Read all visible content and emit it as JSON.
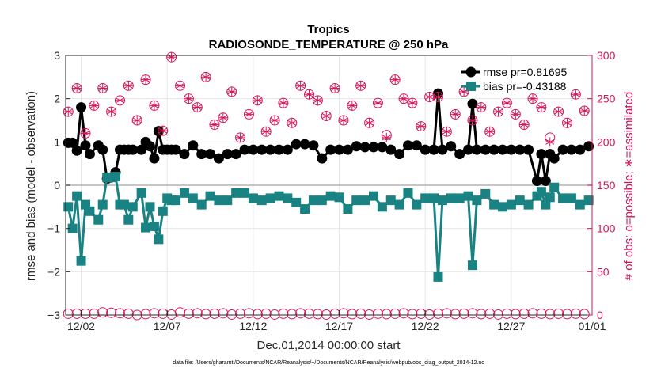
{
  "chart_data": {
    "type": "line",
    "title": "Tropics",
    "subtitle": "RADIOSONDE_TEMPERATURE @ 250 hPa",
    "xlabel": "Dec.01,2014 00:00:00 start",
    "ylabel": "rmse and bias (model - observation)",
    "y2label": "# of obs: o=possible; ∗=assimilated",
    "footnote": "data file: /Users/gharamti/Documents/NCAR/Reanalysis/~/Documents/NCAR/Reanalysis/webpub/obs_diag_output_2014-12.nc",
    "xlim": [
      0.6,
      31.2
    ],
    "ylim": [
      -3,
      3
    ],
    "y2lim": [
      0,
      300
    ],
    "x_ticks": [
      1.5,
      6.5,
      11.5,
      16.5,
      21.5,
      26.5,
      31.5
    ],
    "x_tick_labels": [
      "12/02",
      "12/07",
      "12/12",
      "12/17",
      "12/22",
      "12/27",
      "01/01"
    ],
    "y_ticks": [
      -3,
      -2,
      -1,
      0,
      1,
      2,
      3
    ],
    "y_tick_labels": [
      "−3",
      "−2",
      "−1",
      "0",
      "1",
      "2",
      "3"
    ],
    "y2_ticks": [
      0,
      50,
      100,
      150,
      200,
      250,
      300
    ],
    "y2_tick_labels": [
      "0",
      "50",
      "100",
      "150",
      "200",
      "250",
      "300"
    ],
    "grid": true,
    "legend_position": "top-right",
    "series": [
      {
        "name": "rmse",
        "legend_label": "rmse pr=0.81695",
        "color": "#000000",
        "marker": "circle",
        "axis": "left",
        "x": [
          0.75,
          1.0,
          1.25,
          1.5,
          1.75,
          2.0,
          2.5,
          2.75,
          3.0,
          3.25,
          3.5,
          3.75,
          4.0,
          4.25,
          4.5,
          5.0,
          5.25,
          5.5,
          5.75,
          6.0,
          6.25,
          6.5,
          6.75,
          7.0,
          7.5,
          8.0,
          8.5,
          9.0,
          9.5,
          10.0,
          10.5,
          11.0,
          11.5,
          12.0,
          12.5,
          13.0,
          13.5,
          14.0,
          14.5,
          15.0,
          15.5,
          16.0,
          16.5,
          17.0,
          17.5,
          18.0,
          18.5,
          19.0,
          19.5,
          20.0,
          20.5,
          21.0,
          21.5,
          22.0,
          22.25,
          22.5,
          23.0,
          23.5,
          24.0,
          24.25,
          24.5,
          25.0,
          25.5,
          26.0,
          26.5,
          27.0,
          27.5,
          28.0,
          28.25,
          28.5,
          28.75,
          29.0,
          29.5,
          30.0,
          30.5,
          31.0
        ],
        "y": [
          0.98,
          0.98,
          0.8,
          1.8,
          0.92,
          0.72,
          0.92,
          0.82,
          0.15,
          0.18,
          0.3,
          0.82,
          0.82,
          0.82,
          0.82,
          0.82,
          1.0,
          0.9,
          0.62,
          1.25,
          0.82,
          0.82,
          0.82,
          0.82,
          0.72,
          0.92,
          0.72,
          0.72,
          0.62,
          0.72,
          0.72,
          0.82,
          0.82,
          0.82,
          0.82,
          0.82,
          0.82,
          0.95,
          0.95,
          0.92,
          0.62,
          0.82,
          0.82,
          0.82,
          0.9,
          0.88,
          0.88,
          0.88,
          0.82,
          0.72,
          0.92,
          0.92,
          0.82,
          0.82,
          2.12,
          0.82,
          0.9,
          0.72,
          0.82,
          1.88,
          0.82,
          0.82,
          0.82,
          0.82,
          0.82,
          0.82,
          0.82,
          0.1,
          0.72,
          0.1,
          0.72,
          0.62,
          0.82,
          0.82,
          0.82,
          0.9
        ]
      },
      {
        "name": "bias",
        "legend_label": "bias pr=-0.43188",
        "color": "#198283",
        "marker": "square",
        "axis": "left",
        "x": [
          0.75,
          1.0,
          1.25,
          1.5,
          1.75,
          2.0,
          2.5,
          2.75,
          3.0,
          3.25,
          3.5,
          3.75,
          4.0,
          4.25,
          4.5,
          5.0,
          5.25,
          5.5,
          5.75,
          6.0,
          6.25,
          6.5,
          6.75,
          7.0,
          7.5,
          8.0,
          8.5,
          9.0,
          9.5,
          10.0,
          10.5,
          11.0,
          11.5,
          12.0,
          12.5,
          13.0,
          13.5,
          14.0,
          14.5,
          15.0,
          15.5,
          16.0,
          16.5,
          17.0,
          17.5,
          18.0,
          18.5,
          19.0,
          19.5,
          20.0,
          20.5,
          21.0,
          21.5,
          22.0,
          22.25,
          22.5,
          23.0,
          23.5,
          24.0,
          24.25,
          24.5,
          25.0,
          25.5,
          26.0,
          26.5,
          27.0,
          27.5,
          28.0,
          28.25,
          28.5,
          28.75,
          29.0,
          29.5,
          30.0,
          30.5,
          31.0
        ],
        "y": [
          -0.5,
          -1.0,
          -0.25,
          -1.75,
          -0.45,
          -0.6,
          -0.8,
          -0.45,
          0.18,
          0.18,
          0.2,
          -0.45,
          -0.45,
          -0.8,
          -0.5,
          -0.18,
          -0.98,
          -0.5,
          -0.95,
          -1.25,
          -0.6,
          -0.3,
          -0.35,
          -0.35,
          -0.18,
          -0.3,
          -0.45,
          -0.25,
          -0.35,
          -0.35,
          -0.18,
          -0.18,
          -0.3,
          -0.35,
          -0.3,
          -0.25,
          -0.3,
          -0.4,
          -0.55,
          -0.35,
          -0.35,
          -0.25,
          -0.28,
          -0.55,
          -0.35,
          -0.35,
          -0.25,
          -0.5,
          -0.35,
          -0.45,
          -0.18,
          -0.45,
          -0.3,
          -0.3,
          -2.12,
          -0.35,
          -0.3,
          -0.3,
          -0.25,
          -1.85,
          -0.35,
          -0.2,
          -0.45,
          -0.5,
          -0.45,
          -0.35,
          -0.45,
          -0.25,
          -0.15,
          -0.45,
          -0.28,
          -0.05,
          -0.3,
          -0.3,
          -0.45,
          -0.35
        ]
      },
      {
        "name": "obs possible",
        "color": "#d4145a",
        "marker": "open-circle",
        "axis": "right",
        "x": [
          0.75,
          1.25,
          1.75,
          2.25,
          2.75,
          3.25,
          3.75,
          4.25,
          4.75,
          5.25,
          5.75,
          6.25,
          6.75,
          7.25,
          7.75,
          8.25,
          8.75,
          9.25,
          9.75,
          10.25,
          10.75,
          11.25,
          11.75,
          12.25,
          12.75,
          13.25,
          13.75,
          14.25,
          14.75,
          15.25,
          15.75,
          16.25,
          16.75,
          17.25,
          17.75,
          18.25,
          18.75,
          19.25,
          19.75,
          20.25,
          20.75,
          21.25,
          21.75,
          22.25,
          22.75,
          23.25,
          23.75,
          24.25,
          24.75,
          25.25,
          25.75,
          26.25,
          26.75,
          27.25,
          27.75,
          28.25,
          28.75,
          29.25,
          29.75,
          30.25,
          30.75
        ],
        "y": [
          235,
          262,
          210,
          242,
          262,
          235,
          248,
          265,
          225,
          272,
          242,
          213,
          298,
          265,
          250,
          240,
          275,
          220,
          228,
          258,
          205,
          232,
          248,
          212,
          225,
          245,
          222,
          265,
          255,
          248,
          230,
          262,
          225,
          242,
          265,
          222,
          245,
          208,
          272,
          250,
          245,
          218,
          252,
          252,
          212,
          232,
          258,
          225,
          240,
          212,
          235,
          245,
          232,
          220,
          250,
          240,
          205,
          235,
          222,
          255,
          236
        ]
      },
      {
        "name": "obs assimilated",
        "color": "#d4145a",
        "marker": "asterisk",
        "axis": "right",
        "x": [
          0.75,
          1.25,
          1.75,
          2.25,
          2.75,
          3.25,
          3.75,
          4.25,
          4.75,
          5.25,
          5.75,
          6.25,
          6.75,
          7.25,
          7.75,
          8.25,
          8.75,
          9.25,
          9.75,
          10.25,
          10.75,
          11.25,
          11.75,
          12.25,
          12.75,
          13.25,
          13.75,
          14.25,
          14.75,
          15.25,
          15.75,
          16.25,
          16.75,
          17.25,
          17.75,
          18.25,
          18.75,
          19.25,
          19.75,
          20.25,
          20.75,
          21.25,
          21.75,
          22.25,
          22.75,
          23.25,
          23.75,
          24.25,
          24.75,
          25.25,
          25.75,
          26.25,
          26.75,
          27.25,
          27.75,
          28.25,
          28.75,
          29.25,
          29.75,
          30.25,
          30.75
        ],
        "y": [
          235,
          262,
          210,
          242,
          262,
          235,
          248,
          265,
          225,
          272,
          242,
          213,
          298,
          265,
          250,
          240,
          275,
          220,
          228,
          258,
          205,
          232,
          248,
          212,
          225,
          245,
          222,
          265,
          255,
          248,
          230,
          262,
          225,
          242,
          265,
          222,
          245,
          205,
          272,
          250,
          245,
          218,
          252,
          252,
          212,
          232,
          258,
          225,
          240,
          212,
          235,
          245,
          232,
          220,
          250,
          240,
          200,
          235,
          222,
          255,
          236
        ]
      },
      {
        "name": "obs possible (bottom row)",
        "color": "#d4145a",
        "marker": "open-circle",
        "axis": "left",
        "x": [
          0.75,
          1.25,
          1.75,
          2.25,
          2.75,
          3.25,
          3.75,
          4.25,
          4.75,
          5.25,
          5.75,
          6.25,
          6.75,
          7.25,
          7.75,
          8.25,
          8.75,
          9.25,
          9.75,
          10.25,
          10.75,
          11.25,
          11.75,
          12.25,
          12.75,
          13.25,
          13.75,
          14.25,
          14.75,
          15.25,
          15.75,
          16.25,
          16.75,
          17.25,
          17.75,
          18.25,
          18.75,
          19.25,
          19.75,
          20.25,
          20.75,
          21.25,
          21.75,
          22.25,
          22.75,
          23.25,
          23.75,
          24.25,
          24.75,
          25.25,
          25.75,
          26.25,
          26.75,
          27.25,
          27.75,
          28.25,
          28.75,
          29.25,
          29.75,
          30.25,
          30.75
        ],
        "y": [
          -2.97,
          -2.97,
          -2.97,
          -2.97,
          -2.94,
          -2.95,
          -2.96,
          -2.97,
          -3.0,
          -2.98,
          -2.96,
          -2.97,
          -2.99,
          -2.94,
          -2.97,
          -2.96,
          -2.98,
          -2.97,
          -2.96,
          -2.99,
          -2.97,
          -2.96,
          -2.98,
          -2.97,
          -2.99,
          -2.97,
          -2.98,
          -2.96,
          -2.97,
          -2.98,
          -2.99,
          -2.97,
          -2.96,
          -2.98,
          -2.97,
          -2.99,
          -2.97,
          -2.98,
          -2.97,
          -2.96,
          -2.98,
          -2.97,
          -2.99,
          -2.97,
          -2.96,
          -2.98,
          -2.97,
          -2.96,
          -2.98,
          -2.97,
          -2.99,
          -2.97,
          -2.98,
          -2.97,
          -2.96,
          -2.97,
          -2.98,
          -2.97,
          -2.98,
          -2.97,
          -2.98
        ]
      }
    ]
  }
}
